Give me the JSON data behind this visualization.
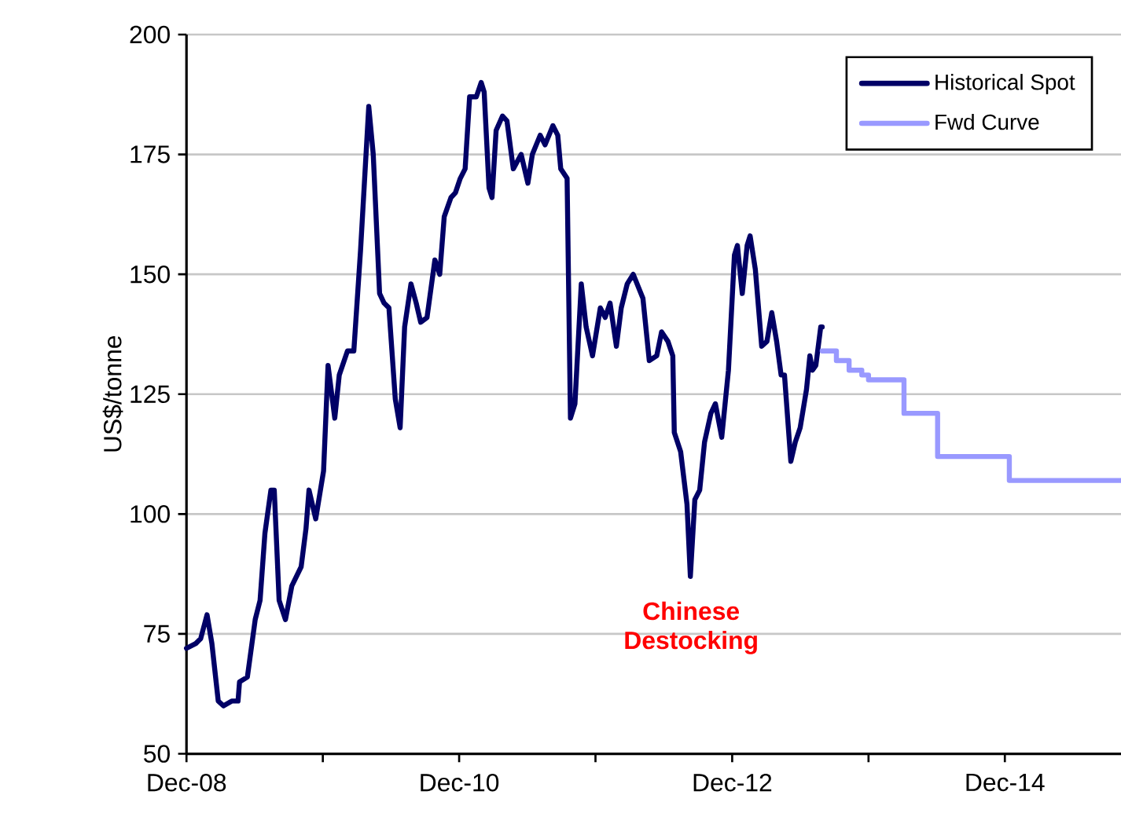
{
  "chart_data": {
    "type": "line",
    "ylabel": "US$/tonne",
    "xlim": [
      "2008-12-01",
      "2015-10-08"
    ],
    "ylim": [
      50,
      200
    ],
    "xticks": [
      {
        "value": "2008-12-01",
        "label": "Dec-08"
      },
      {
        "value": "2009-12-01",
        "label": null
      },
      {
        "value": "2010-12-01",
        "label": "Dec-10"
      },
      {
        "value": "2011-12-01",
        "label": null
      },
      {
        "value": "2012-12-01",
        "label": "Dec-12"
      },
      {
        "value": "2013-12-01",
        "label": null
      },
      {
        "value": "2014-12-01",
        "label": "Dec-14"
      }
    ],
    "yticks": [
      50,
      75,
      100,
      125,
      150,
      175,
      200
    ],
    "grid": "y",
    "legend": "top right",
    "annotations": [
      "Chinese Destocking"
    ],
    "series": [
      {
        "name": "Historical Spot",
        "color": "#000066",
        "x": [
          "2008-12-01",
          "2008-12-26",
          "2009-01-08",
          "2009-01-25",
          "2009-02-07",
          "2009-02-24",
          "2009-03-10",
          "2009-04-01",
          "2009-04-18",
          "2009-04-22",
          "2009-05-13",
          "2009-06-03",
          "2009-06-16",
          "2009-06-29",
          "2009-07-15",
          "2009-07-24",
          "2009-08-06",
          "2009-08-23",
          "2009-09-09",
          "2009-10-04",
          "2009-10-17",
          "2009-10-25",
          "2009-11-12",
          "2009-12-03",
          "2009-12-15",
          "2010-01-02",
          "2010-01-14",
          "2010-02-05",
          "2010-02-22",
          "2010-03-12",
          "2010-04-03",
          "2010-04-15",
          "2010-05-02",
          "2010-05-14",
          "2010-05-27",
          "2010-06-13",
          "2010-06-26",
          "2010-07-08",
          "2010-07-25",
          "2010-08-08",
          "2010-08-20",
          "2010-09-06",
          "2010-09-27",
          "2010-10-10",
          "2010-10-22",
          "2010-11-09",
          "2010-11-21",
          "2010-12-04",
          "2010-12-17",
          "2010-12-29",
          "2011-01-16",
          "2011-01-29",
          "2011-02-06",
          "2011-02-19",
          "2011-02-27",
          "2011-03-10",
          "2011-03-27",
          "2011-04-08",
          "2011-04-25",
          "2011-05-16",
          "2011-06-03",
          "2011-06-15",
          "2011-07-06",
          "2011-07-19",
          "2011-08-09",
          "2011-08-22",
          "2011-08-30",
          "2011-09-16",
          "2011-09-25",
          "2011-10-07",
          "2011-10-24",
          "2011-11-06",
          "2011-11-23",
          "2011-12-14",
          "2011-12-27",
          "2012-01-09",
          "2012-01-26",
          "2012-02-08",
          "2012-02-24",
          "2012-03-11",
          "2012-04-06",
          "2012-04-23",
          "2012-05-13",
          "2012-05-26",
          "2012-06-12",
          "2012-06-25",
          "2012-06-29",
          "2012-07-16",
          "2012-08-02",
          "2012-08-11",
          "2012-08-23",
          "2012-09-05",
          "2012-09-18",
          "2012-10-05",
          "2012-10-17",
          "2012-11-03",
          "2012-11-21",
          "2012-12-07",
          "2012-12-15",
          "2012-12-28",
          "2013-01-10",
          "2013-01-18",
          "2013-02-01",
          "2013-02-18",
          "2013-03-04",
          "2013-03-17",
          "2013-03-30",
          "2013-04-11",
          "2013-04-20",
          "2013-05-07",
          "2013-05-19",
          "2013-06-01",
          "2013-06-18",
          "2013-06-27",
          "2013-07-04",
          "2013-07-13",
          "2013-07-26",
          "2013-07-30"
        ],
        "values": [
          72,
          73,
          74,
          79,
          73,
          61,
          60,
          61,
          61,
          65,
          66,
          78,
          82,
          96,
          105,
          105,
          82,
          78,
          85,
          89,
          97,
          105,
          99,
          109,
          131,
          120,
          129,
          134,
          134,
          155,
          185,
          175,
          146,
          144,
          143,
          124,
          118,
          139,
          148,
          144,
          140,
          141,
          153,
          150,
          162,
          166,
          167,
          170,
          172,
          187,
          187,
          190,
          188,
          168,
          166,
          180,
          183,
          182,
          172,
          175,
          169,
          175,
          179,
          177,
          181,
          179,
          172,
          170,
          120,
          123,
          148,
          139,
          133,
          143,
          141,
          144,
          135,
          143,
          148,
          150,
          145,
          132,
          133,
          138,
          136,
          133,
          117,
          113,
          102,
          87,
          103,
          105,
          115,
          121,
          123,
          116,
          130,
          154,
          156,
          146,
          156,
          158,
          151,
          135,
          136,
          142,
          136,
          129,
          129,
          111,
          115,
          118,
          126,
          133,
          130,
          131,
          139,
          139
        ]
      },
      {
        "name": "Fwd Curve",
        "color": "#9999ff",
        "type": "step",
        "x": [
          "2013-07-30",
          "2013-09-06",
          "2013-10-10",
          "2013-11-13",
          "2013-12-01",
          "2014-03-06",
          "2014-06-04",
          "2014-12-13",
          "2015-10-08"
        ],
        "values": [
          134,
          132,
          130,
          129,
          128,
          121,
          112,
          107,
          107
        ]
      }
    ]
  }
}
